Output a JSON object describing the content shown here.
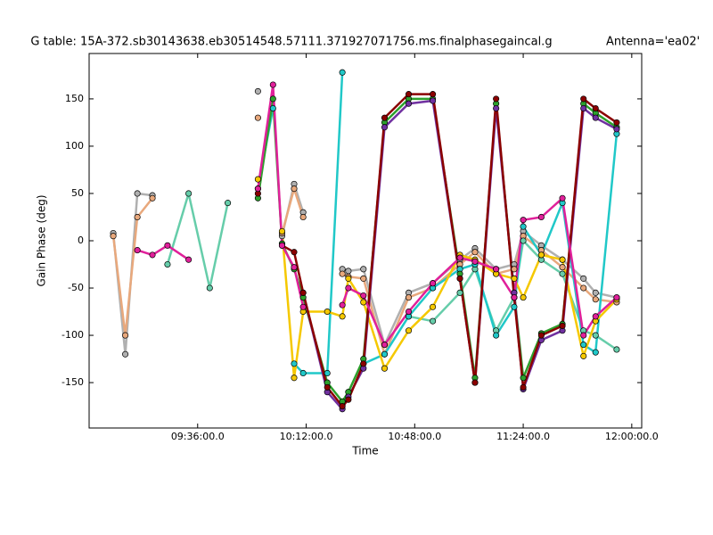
{
  "chart_data": {
    "type": "line",
    "title": "G table: 15A-372.sb30143638.eb30514548.57111.371927071756.ms.finalphasegaincal.g",
    "annotation": "Antenna='ea02'",
    "x_label": "Time",
    "y_label": "Gain Phase (deg)",
    "x": [
      548,
      552,
      556,
      561,
      566,
      573,
      580,
      586,
      596,
      601,
      604,
      608,
      611,
      619,
      624,
      626,
      631,
      638,
      646,
      654,
      663,
      668,
      675,
      681,
      684,
      690,
      697,
      704,
      708,
      715
    ],
    "xlim": [
      540,
      723.3
    ],
    "xticks": [
      {
        "value": 576,
        "label": "09:36:00.0"
      },
      {
        "value": 612,
        "label": "10:12:00.0"
      },
      {
        "value": 648,
        "label": "10:48:00.0"
      },
      {
        "value": 684,
        "label": "11:24:00.0"
      },
      {
        "value": 720,
        "label": "12:00:00.0"
      }
    ],
    "ylim": [
      -198,
      198
    ],
    "yticks": [
      -150,
      -100,
      -50,
      0,
      50,
      100,
      150
    ],
    "grid": false,
    "series": [
      {
        "color": "#b0b0b0",
        "values": [
          8,
          -120,
          50,
          48,
          null,
          null,
          null,
          null,
          158,
          null,
          5,
          60,
          30,
          null,
          -30,
          -32,
          -30,
          -110,
          -55,
          -45,
          -20,
          -8,
          -30,
          -25,
          10,
          -5,
          -20,
          -40,
          -55,
          -60
        ]
      },
      {
        "color": "#e8a87c",
        "values": [
          5,
          -100,
          25,
          45,
          null,
          null,
          null,
          null,
          130,
          null,
          8,
          55,
          25,
          null,
          -35,
          -38,
          -40,
          -120,
          -60,
          -50,
          -25,
          -12,
          -35,
          -30,
          5,
          -10,
          -28,
          -50,
          -62,
          -65
        ]
      },
      {
        "color": "#66cdaa",
        "values": [
          null,
          null,
          null,
          null,
          -25,
          50,
          -50,
          40,
          null,
          null,
          null,
          null,
          null,
          null,
          null,
          null,
          null,
          null,
          -80,
          -85,
          -55,
          -30,
          -95,
          -60,
          0,
          -20,
          -35,
          -95,
          -100,
          -115
        ]
      },
      {
        "color": "#20c8c8",
        "values": [
          null,
          null,
          null,
          null,
          null,
          null,
          null,
          null,
          55,
          140,
          null,
          -130,
          -140,
          -140,
          178,
          null,
          -130,
          -120,
          -80,
          -50,
          -30,
          -25,
          -100,
          -70,
          15,
          -15,
          40,
          -110,
          -118,
          113
        ]
      },
      {
        "color": "#f5c800",
        "values": [
          null,
          null,
          null,
          null,
          null,
          null,
          null,
          null,
          65,
          null,
          10,
          -145,
          -75,
          -75,
          -80,
          -40,
          -65,
          -135,
          -95,
          -70,
          -15,
          -20,
          -35,
          -40,
          -60,
          -15,
          -20,
          -122,
          -85,
          -62
        ]
      },
      {
        "color": "#2ca02c",
        "values": [
          null,
          null,
          null,
          null,
          null,
          null,
          null,
          null,
          45,
          150,
          -3,
          -30,
          -60,
          -150,
          -170,
          -160,
          -125,
          125,
          150,
          150,
          -35,
          -145,
          145,
          -55,
          -145,
          -98,
          -88,
          145,
          135,
          120
        ]
      },
      {
        "color": "#7030a0",
        "values": [
          null,
          null,
          null,
          null,
          null,
          null,
          null,
          null,
          null,
          null,
          null,
          null,
          -55,
          -160,
          -178,
          -165,
          -135,
          120,
          145,
          148,
          -40,
          -150,
          140,
          -55,
          -157,
          -105,
          -95,
          140,
          130,
          118
        ]
      },
      {
        "color": "#8b0000",
        "values": [
          null,
          null,
          null,
          null,
          null,
          null,
          null,
          null,
          50,
          null,
          -5,
          -12,
          -55,
          -155,
          -175,
          -168,
          -130,
          130,
          155,
          155,
          -40,
          -150,
          150,
          -60,
          -155,
          -100,
          -90,
          150,
          140,
          125
        ]
      },
      {
        "color": "#e0209a",
        "values": [
          null,
          null,
          -10,
          -15,
          -5,
          -20,
          null,
          null,
          55,
          165,
          -5,
          -28,
          -70,
          null,
          -68,
          -50,
          -58,
          -110,
          -75,
          -45,
          -18,
          -22,
          -30,
          -60,
          22,
          25,
          45,
          -100,
          -80,
          -60
        ]
      }
    ]
  }
}
